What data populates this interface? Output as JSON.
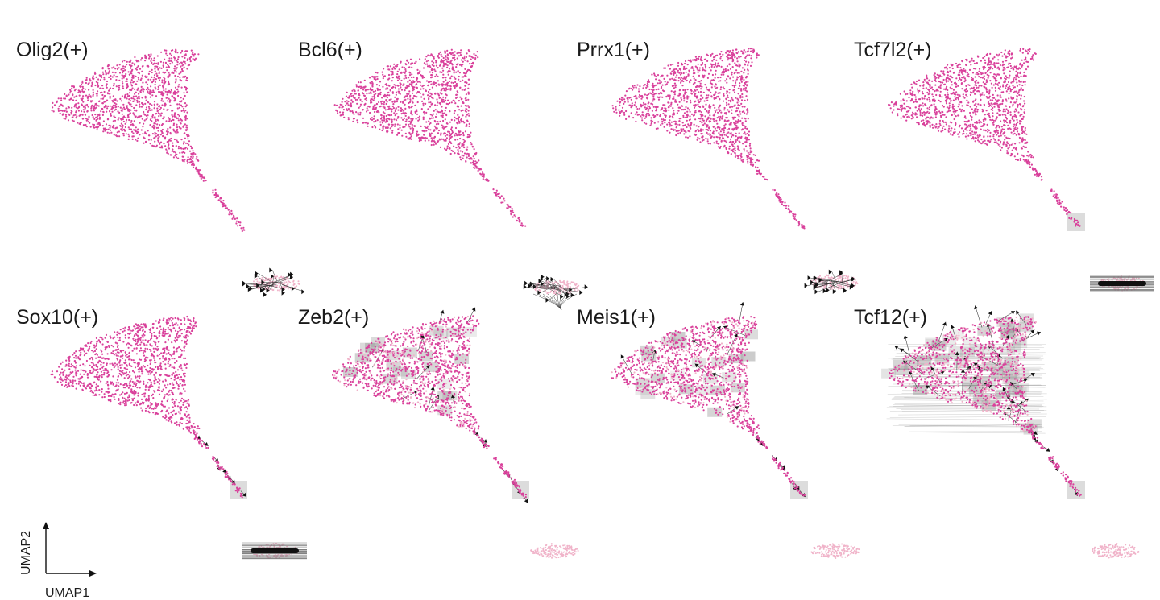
{
  "chart_data": {
    "type": "scatter",
    "description_axes": {
      "xlabel": "UMAP1",
      "ylabel": "UMAP2"
    },
    "colors": {
      "cell_main": "#d9419b",
      "cell_light": "#f0b3c9",
      "arrow": "#111111",
      "grid_shade": "#9a9a9a"
    },
    "panels": [
      {
        "title": "Olig2(+)",
        "row": 0,
        "col": 0,
        "main_velocity": "none",
        "inset_velocity": "radial"
      },
      {
        "title": "Bcl6(+)",
        "row": 0,
        "col": 1,
        "main_velocity": "none",
        "inset_velocity": "radial_down"
      },
      {
        "title": "Prrx1(+)",
        "row": 0,
        "col": 2,
        "main_velocity": "none",
        "inset_velocity": "radial_left"
      },
      {
        "title": "Tcf7l2(+)",
        "row": 0,
        "col": 3,
        "main_velocity": "tail_light",
        "inset_velocity": "horizontal_band"
      },
      {
        "title": "Sox10(+)",
        "row": 1,
        "col": 0,
        "main_velocity": "tail",
        "inset_velocity": "horizontal_band"
      },
      {
        "title": "Zeb2(+)",
        "row": 1,
        "col": 1,
        "main_velocity": "moderate",
        "inset_velocity": "none"
      },
      {
        "title": "Meis1(+)",
        "row": 1,
        "col": 2,
        "main_velocity": "moderate",
        "inset_velocity": "none"
      },
      {
        "title": "Tcf12(+)",
        "row": 1,
        "col": 3,
        "main_velocity": "strong",
        "inset_velocity": "none"
      }
    ]
  },
  "axes_legend": {
    "xlabel": "UMAP1",
    "ylabel": "UMAP2"
  }
}
